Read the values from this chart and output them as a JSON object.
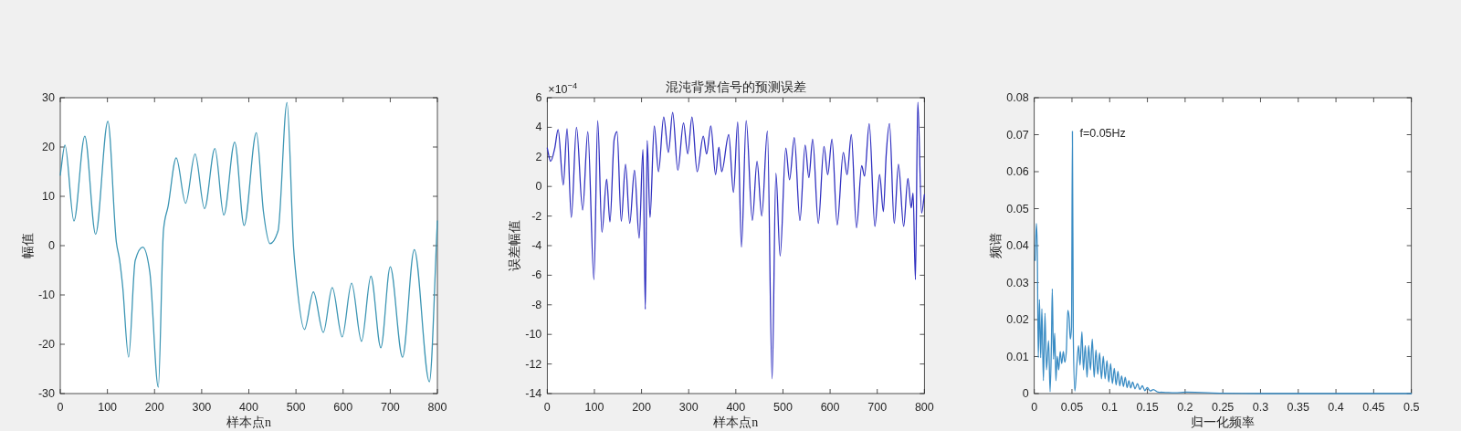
{
  "chart_data": [
    {
      "type": "line",
      "xlabel": "样本点n",
      "ylabel": "幅值",
      "xlim": [
        0,
        800
      ],
      "ylim": [
        -30,
        30
      ],
      "xticks": [
        0,
        100,
        200,
        300,
        400,
        500,
        600,
        700,
        800
      ],
      "yticks": [
        -30,
        -20,
        -10,
        0,
        10,
        20,
        30
      ],
      "series": [
        {
          "color": "#3d96b4",
          "x": [
            0,
            10,
            29,
            52,
            75,
            101,
            119,
            126,
            132,
            145,
            159,
            175,
            190,
            208,
            219,
            229,
            246,
            266,
            286,
            306,
            328,
            347,
            370,
            390,
            416,
            431,
            445,
            462,
            481,
            495,
            501,
            518,
            537,
            558,
            577,
            598,
            618,
            639,
            659,
            680,
            700,
            726,
            751,
            783,
            800
          ],
          "values": [
            14.3,
            20.4,
            5.0,
            22.2,
            2.3,
            25.2,
            0.7,
            -3.0,
            -7.9,
            -22.6,
            -3.0,
            -0.3,
            -5.4,
            -28.7,
            3.2,
            8.1,
            17.8,
            8.6,
            18.6,
            7.5,
            19.7,
            6.2,
            21.0,
            4.1,
            22.9,
            6.9,
            0.4,
            3.0,
            29.0,
            -0.5,
            -7.0,
            -17.0,
            -9.4,
            -17.6,
            -8.5,
            -18.5,
            -7.6,
            -19.4,
            -6.2,
            -20.7,
            -4.3,
            -22.6,
            -0.8,
            -27.6,
            5.0
          ]
        }
      ]
    },
    {
      "type": "line",
      "title": "混沌背景信号的预测误差",
      "xlabel": "样本点n",
      "ylabel": "误差幅值",
      "annotations": [
        "×10$^{−4}$"
      ],
      "xlim": [
        0,
        800
      ],
      "ylim": [
        -14,
        6
      ],
      "xticks": [
        0,
        100,
        200,
        300,
        400,
        500,
        600,
        700,
        800
      ],
      "yticks": [
        -14,
        -12,
        -10,
        -8,
        -6,
        -4,
        -2,
        0,
        2,
        4,
        6
      ],
      "series": [
        {
          "color": "#3030c0",
          "x": [
            0,
            7,
            16,
            23,
            34,
            42,
            51,
            62,
            75,
            86,
            99,
            107,
            116,
            126,
            133,
            142,
            148,
            157,
            166,
            175,
            185,
            195,
            203,
            208,
            212,
            218,
            227,
            236,
            247,
            257,
            266,
            277,
            289,
            298,
            307,
            318,
            331,
            338,
            347,
            357,
            364,
            370,
            385,
            395,
            404,
            412,
            422,
            435,
            445,
            455,
            467,
            477,
            485,
            494,
            506,
            514,
            524,
            536,
            547,
            555,
            563,
            575,
            587,
            595,
            604,
            615,
            628,
            636,
            645,
            656,
            667,
            673,
            683,
            695,
            705,
            713,
            719,
            726,
            736,
            745,
            756,
            765,
            772,
            776,
            781,
            786,
            794,
            800
          ],
          "values": [
            2.6,
            1.7,
            2.6,
            3.85,
            0.1,
            3.9,
            -2.1,
            4.0,
            -1.6,
            3.7,
            -6.3,
            4.45,
            -3.1,
            0.5,
            -2.4,
            3.2,
            3.7,
            -2.35,
            1.5,
            -2.5,
            1.1,
            -3.5,
            2.5,
            -8.3,
            3.1,
            -2.1,
            4.1,
            1.0,
            4.7,
            2.3,
            5.0,
            1.1,
            4.3,
            2.2,
            4.7,
            1.0,
            3.4,
            2.2,
            4.1,
            0.8,
            2.65,
            1.0,
            3.5,
            -0.4,
            4.35,
            -4.1,
            4.45,
            -2.3,
            1.7,
            -2.0,
            3.75,
            -13.0,
            0.9,
            -4.7,
            2.6,
            0.45,
            3.3,
            -2.3,
            2.8,
            0.6,
            3.2,
            -2.5,
            2.7,
            0.8,
            3.2,
            -2.6,
            2.3,
            0.8,
            3.5,
            -2.8,
            1.4,
            0.7,
            4.25,
            -2.7,
            0.8,
            -1.7,
            2.15,
            4.25,
            -2.5,
            1.5,
            -2.7,
            0.55,
            -1.45,
            -0.45,
            -6.3,
            5.7,
            -1.8,
            -0.55
          ]
        }
      ]
    },
    {
      "type": "line",
      "xlabel": "归一化频率",
      "ylabel": "频谱",
      "annotations": [
        {
          "text": "f=0.05Hz",
          "x": 0.0506,
          "y": 0.0709
        }
      ],
      "xlim": [
        0,
        0.5
      ],
      "ylim": [
        0,
        0.08
      ],
      "xticks": [
        0,
        0.05,
        0.1,
        0.15,
        0.2,
        0.25,
        0.3,
        0.35,
        0.4,
        0.45,
        0.5
      ],
      "yticks": [
        0,
        0.01,
        0.02,
        0.03,
        0.04,
        0.05,
        0.06,
        0.07,
        0.08
      ],
      "series": [
        {
          "color": "#3a8cc4",
          "x": [
            0.0012,
            0.0028,
            0.004,
            0.0053,
            0.0069,
            0.0085,
            0.0101,
            0.0121,
            0.0142,
            0.0162,
            0.019,
            0.021,
            0.0227,
            0.0239,
            0.0255,
            0.0271,
            0.0287,
            0.0304,
            0.0324,
            0.0344,
            0.0364,
            0.0385,
            0.0405,
            0.0425,
            0.0445,
            0.0462,
            0.0478,
            0.0494,
            0.0506,
            0.0518,
            0.0538,
            0.0563,
            0.0587,
            0.0607,
            0.0632,
            0.0652,
            0.0676,
            0.07,
            0.0721,
            0.0745,
            0.0769,
            0.0794,
            0.0818,
            0.0842,
            0.0866,
            0.0891,
            0.0915,
            0.0939,
            0.0964,
            0.0988,
            0.1012,
            0.1036,
            0.1061,
            0.1085,
            0.1109,
            0.1134,
            0.1158,
            0.1182,
            0.1206,
            0.1231,
            0.1255,
            0.1279,
            0.1304,
            0.1336,
            0.1368,
            0.1401,
            0.1433,
            0.1466,
            0.1498,
            0.1538,
            0.1579,
            0.164,
            0.1741,
            0.1862,
            0.2012,
            0.25,
            0.3,
            0.5
          ],
          "values": [
            0.036,
            0.046,
            0.039,
            0.0097,
            0.0254,
            0.0097,
            0.0229,
            0.0035,
            0.0217,
            0.0064,
            0.0143,
            0.0005,
            0.013,
            0.0283,
            0.0093,
            0.0163,
            0.0035,
            0.0101,
            0.0064,
            0.0114,
            0.0081,
            0.0114,
            0.0085,
            0.0114,
            0.0225,
            0.0205,
            0.0147,
            0.018,
            0.0709,
            0.0147,
            0.0007,
            0.0073,
            0.013,
            0.0077,
            0.0167,
            0.0064,
            0.013,
            0.0044,
            0.013,
            0.0064,
            0.0147,
            0.0044,
            0.0118,
            0.0052,
            0.011,
            0.004,
            0.0101,
            0.004,
            0.0089,
            0.0031,
            0.0081,
            0.0027,
            0.0068,
            0.0023,
            0.006,
            0.0021,
            0.0048,
            0.0019,
            0.0044,
            0.0016,
            0.0035,
            0.0015,
            0.0031,
            0.0013,
            0.0027,
            0.0011,
            0.0021,
            0.0008,
            0.0016,
            0.0007,
            0.0011,
            0.0004,
            0.0003,
            0.0002,
            0.0004,
            0.0001,
            0,
            0
          ]
        }
      ]
    }
  ]
}
